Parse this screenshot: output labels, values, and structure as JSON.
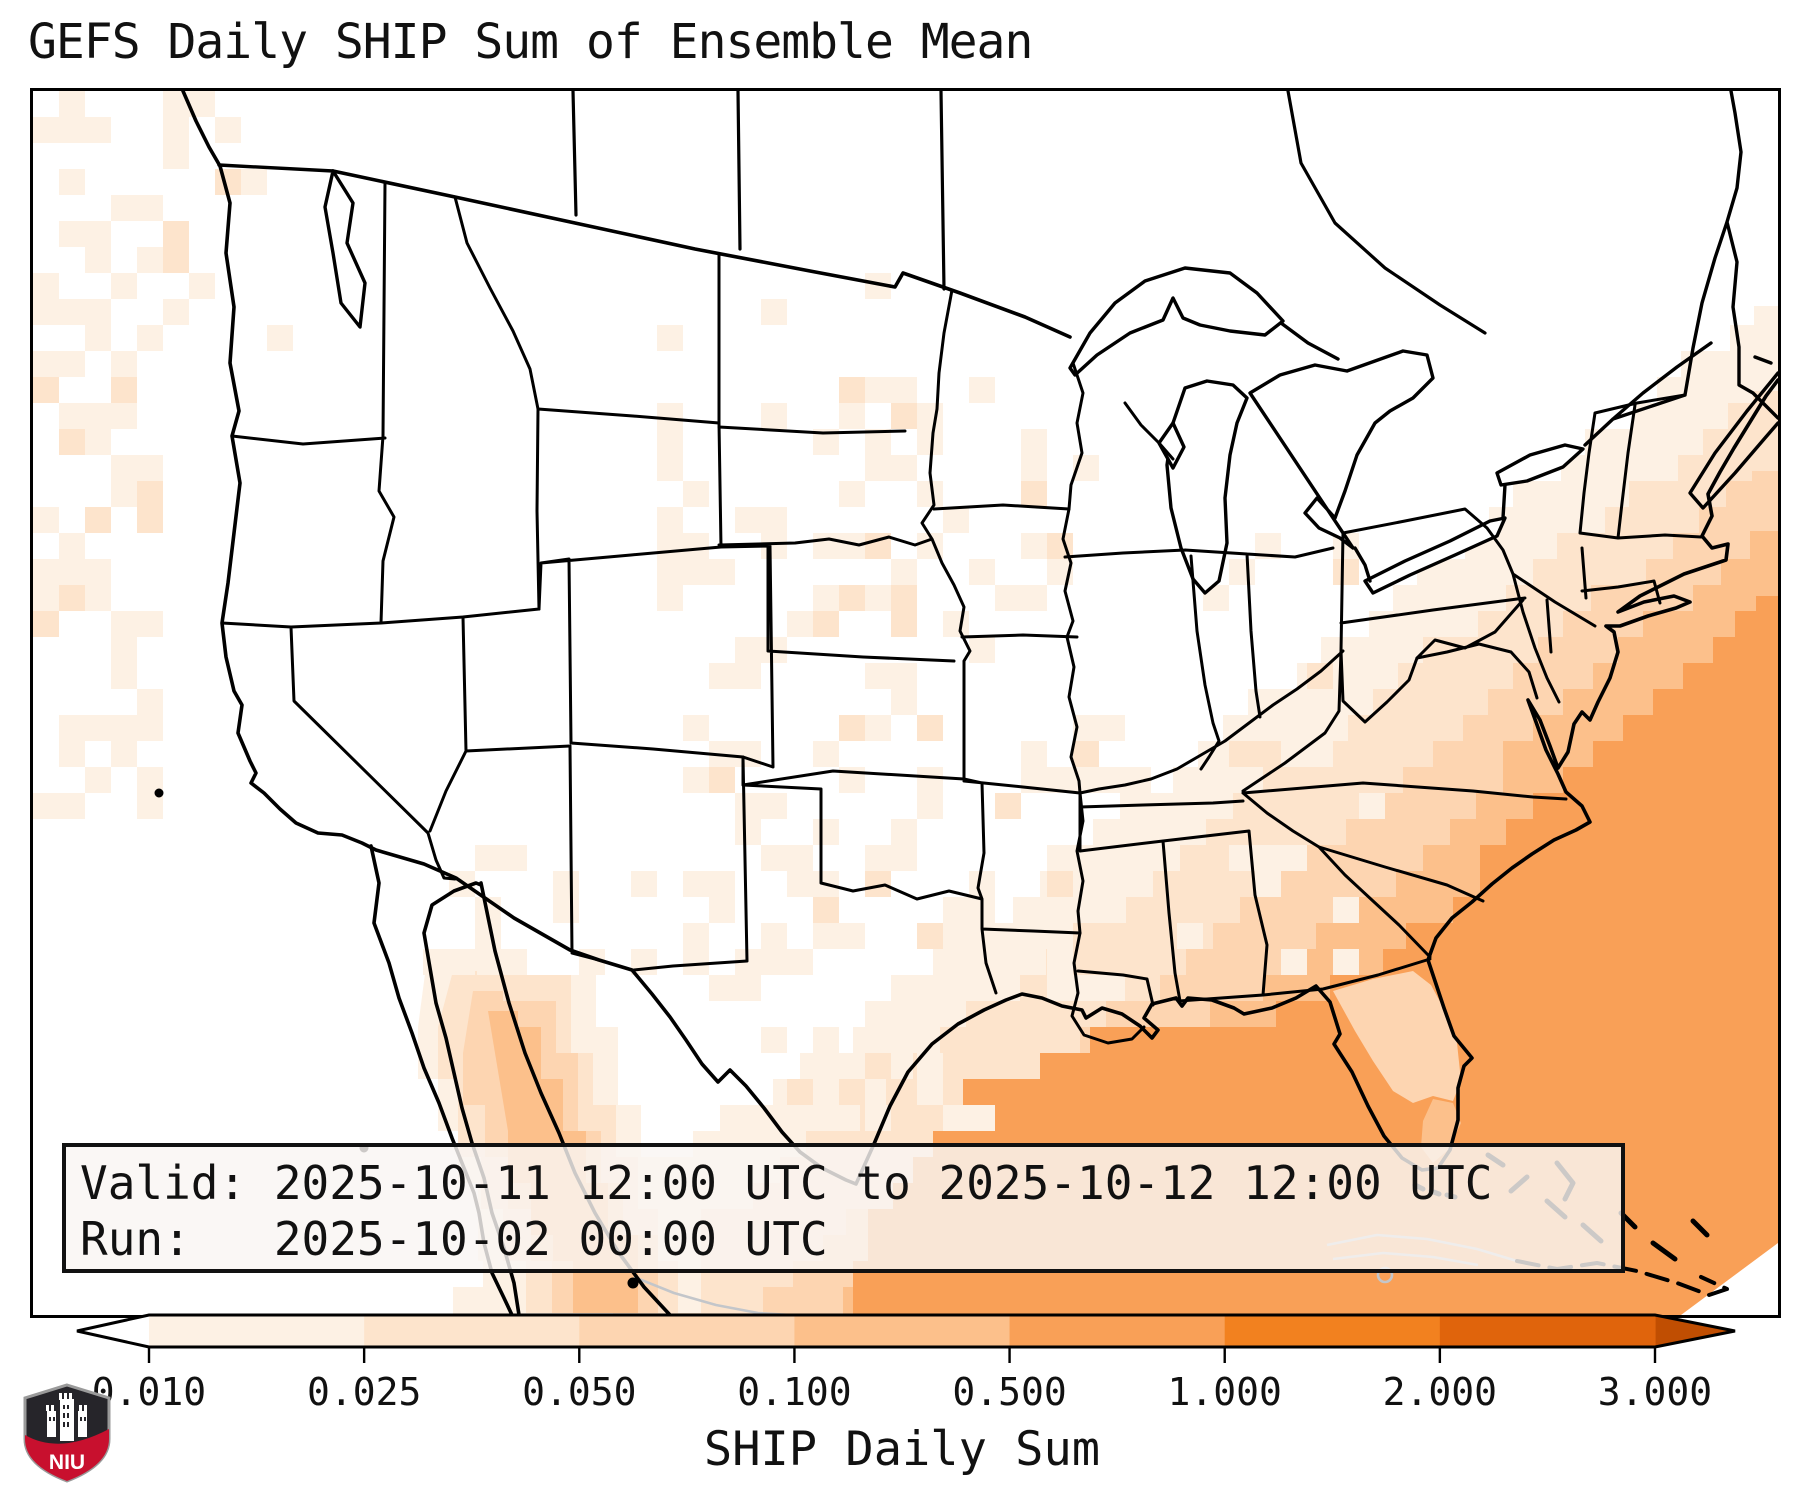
{
  "title": "GEFS Daily SHIP Sum of Ensemble Mean",
  "info_box": {
    "valid_line": "Valid: 2025-10-11 12:00 UTC to 2025-10-12 12:00 UTC",
    "run_line": "Run:   2025-10-02 00:00 UTC"
  },
  "colorbar": {
    "label": "SHIP Daily Sum",
    "ticks": [
      "0.010",
      "0.025",
      "0.050",
      "0.100",
      "0.500",
      "1.000",
      "2.000",
      "3.000"
    ],
    "segment_colors": [
      "#fdf1e4",
      "#fde4cc",
      "#fdd5b1",
      "#fcc08b",
      "#f9a057",
      "#f2811f",
      "#e0640c"
    ],
    "under_color": "#ffffff",
    "over_color": "#c04e02",
    "outline_color": "#000000"
  },
  "map": {
    "background": "#ffffff",
    "border_color": "#000000",
    "land_line_color": "#000000",
    "secondary_coast_color": "#c3c6ca",
    "level_colors": [
      "#fdf1e4",
      "#fde4cc",
      "#fdd5b1",
      "#fcc08b",
      "#f9a057"
    ]
  },
  "logo": {
    "text": "NIU",
    "shield_dark": "#26252a",
    "shield_red": "#c8102e",
    "shield_border": "#9a9a9a",
    "castle_color": "#ffffff"
  }
}
